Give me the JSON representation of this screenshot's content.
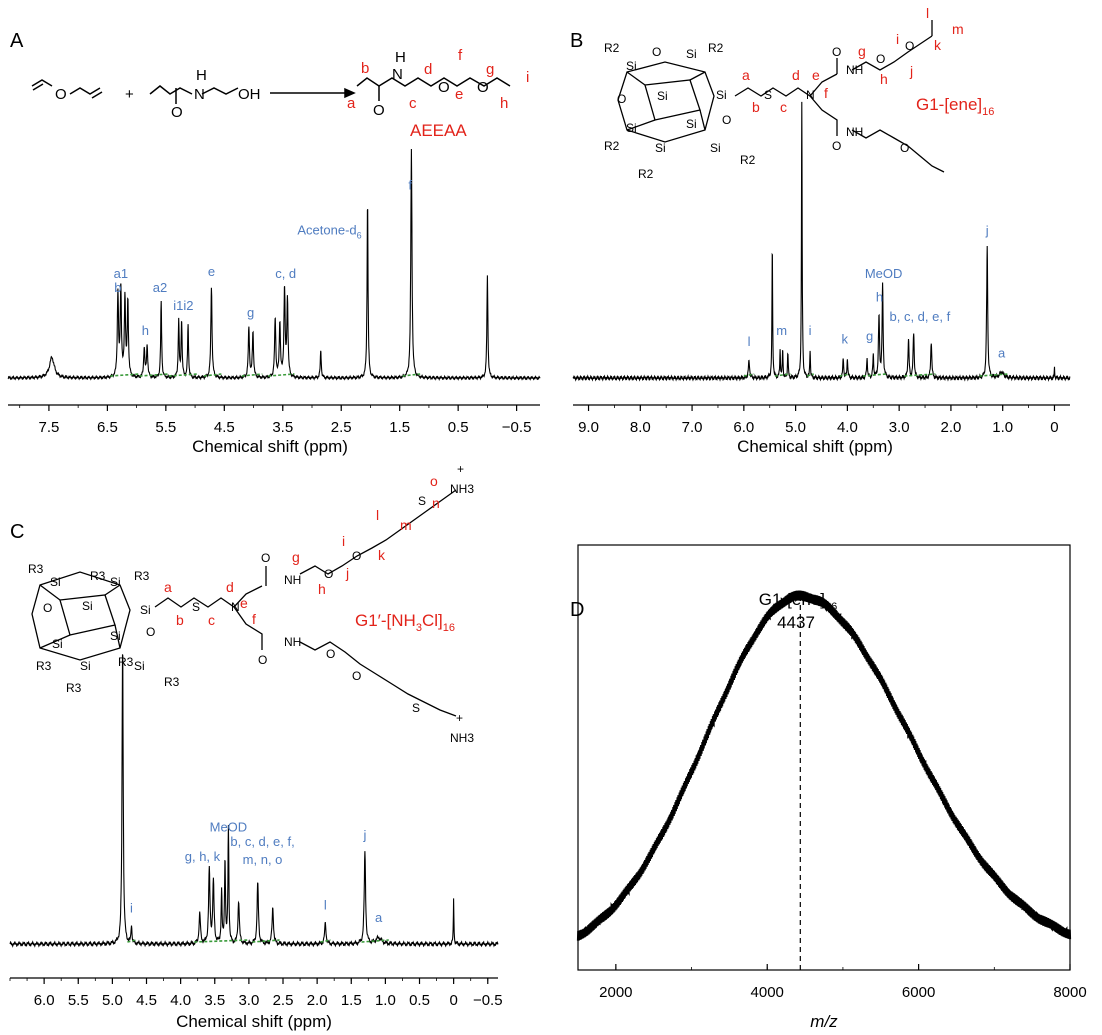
{
  "figure": {
    "panels": [
      "A",
      "B",
      "C",
      "D"
    ]
  },
  "colors": {
    "spectrum": "#000000",
    "peak_label": "#4f7cc0",
    "structure_label": "#e2231a",
    "integral": "#3a9a3a"
  },
  "chart_data": [
    {
      "panel": "A",
      "type": "line",
      "xlabel": "Chemical shift (ppm)",
      "x_ticks": [
        "7.5",
        "6.5",
        "5.5",
        "4.5",
        "3.5",
        "2.5",
        "1.5",
        "0.5",
        "−0.5"
      ],
      "xlim": [
        8.2,
        -0.9
      ],
      "x_reversed": true,
      "ylabel": "",
      "grid": false,
      "compound_label": "AEEAA",
      "scheme": {
        "reagent_joiner": "+",
        "reagent2_atoms": [
          "H",
          "N",
          "O",
          "OH"
        ],
        "product_atoms": [
          "H",
          "N",
          "O",
          "O",
          "O"
        ]
      },
      "structure_labels": [
        "a",
        "b",
        "c",
        "d",
        "e",
        "f",
        "g",
        "h",
        "i"
      ],
      "peaks": [
        {
          "x": 7.45,
          "h": 0.09,
          "w": 0.05
        },
        {
          "x": 6.32,
          "h": 0.37,
          "w": 0.012
        },
        {
          "x": 6.27,
          "h": 0.39,
          "w": 0.012
        },
        {
          "x": 6.2,
          "h": 0.35,
          "w": 0.012
        },
        {
          "x": 6.15,
          "h": 0.33,
          "w": 0.012
        },
        {
          "x": 5.87,
          "h": 0.13,
          "w": 0.012
        },
        {
          "x": 5.82,
          "h": 0.14,
          "w": 0.012
        },
        {
          "x": 5.58,
          "h": 0.33,
          "w": 0.01
        },
        {
          "x": 5.28,
          "h": 0.25,
          "w": 0.01
        },
        {
          "x": 5.23,
          "h": 0.25,
          "w": 0.01
        },
        {
          "x": 5.12,
          "h": 0.23,
          "w": 0.01
        },
        {
          "x": 4.72,
          "h": 0.4,
          "w": 0.012
        },
        {
          "x": 4.08,
          "h": 0.22,
          "w": 0.012
        },
        {
          "x": 4.01,
          "h": 0.2,
          "w": 0.012
        },
        {
          "x": 3.63,
          "h": 0.26,
          "w": 0.012
        },
        {
          "x": 3.55,
          "h": 0.24,
          "w": 0.012
        },
        {
          "x": 3.47,
          "h": 0.39,
          "w": 0.012
        },
        {
          "x": 3.42,
          "h": 0.34,
          "w": 0.012
        },
        {
          "x": 2.85,
          "h": 0.12,
          "w": 0.01
        },
        {
          "x": 2.05,
          "h": 0.77,
          "w": 0.01
        },
        {
          "x": 1.3,
          "h": 1.0,
          "w": 0.012
        },
        {
          "x": 0.0,
          "h": 0.45,
          "w": 0.01
        }
      ],
      "peak_labels": [
        {
          "text": "a1",
          "x": 6.27,
          "h": 0.42
        },
        {
          "text": "b",
          "x": 6.32,
          "h": 0.36
        },
        {
          "text": "h",
          "x": 5.85,
          "h": 0.17
        },
        {
          "text": "a2",
          "x": 5.6,
          "h": 0.36
        },
        {
          "text": "i1i2",
          "x": 5.2,
          "h": 0.28
        },
        {
          "text": "e",
          "x": 4.72,
          "h": 0.43
        },
        {
          "text": "g",
          "x": 4.05,
          "h": 0.25
        },
        {
          "text": "c, d",
          "x": 3.45,
          "h": 0.42
        },
        {
          "text": "f",
          "x": 1.32,
          "h": 0.81
        }
      ],
      "solvent_label": {
        "text": "Acetone-d",
        "sub": "6",
        "x": 2.7,
        "h": 0.63
      },
      "integrals": [
        [
          6.45,
          5.95
        ],
        [
          5.95,
          5.45
        ],
        [
          5.45,
          4.95
        ],
        [
          4.85,
          4.55
        ],
        [
          4.2,
          3.85
        ],
        [
          3.75,
          3.3
        ],
        [
          1.45,
          1.15
        ]
      ]
    },
    {
      "panel": "B",
      "type": "line",
      "xlabel": "Chemical shift (ppm)",
      "x_ticks": [
        "9.0",
        "8.0",
        "7.0",
        "6.0",
        "5.0",
        "4.0",
        "3.0",
        "2.0",
        "1.0",
        "0"
      ],
      "xlim": [
        9.3,
        -0.3
      ],
      "x_reversed": true,
      "ylabel": "",
      "grid": false,
      "compound_label": "G1-[ene]",
      "compound_sub": "16",
      "scheme": {
        "atoms": [
          "R2",
          "Si",
          "O",
          "S",
          "N",
          "O",
          "NH",
          "O",
          "O",
          "NH",
          "O",
          "O"
        ]
      },
      "structure_labels": [
        "a",
        "b",
        "c",
        "d",
        "e",
        "f",
        "g",
        "h",
        "i",
        "j",
        "k",
        "l",
        "m"
      ],
      "peaks": [
        {
          "x": 5.9,
          "h": 0.06,
          "w": 0.015
        },
        {
          "x": 5.45,
          "h": 0.47,
          "w": 0.008
        },
        {
          "x": 5.3,
          "h": 0.1,
          "w": 0.008
        },
        {
          "x": 5.25,
          "h": 0.1,
          "w": 0.008
        },
        {
          "x": 5.15,
          "h": 0.09,
          "w": 0.008
        },
        {
          "x": 4.88,
          "h": 0.99,
          "w": 0.008
        },
        {
          "x": 4.72,
          "h": 0.1,
          "w": 0.008
        },
        {
          "x": 4.08,
          "h": 0.07,
          "w": 0.01
        },
        {
          "x": 4.0,
          "h": 0.07,
          "w": 0.01
        },
        {
          "x": 3.62,
          "h": 0.07,
          "w": 0.01
        },
        {
          "x": 3.5,
          "h": 0.08,
          "w": 0.01
        },
        {
          "x": 3.39,
          "h": 0.22,
          "w": 0.012
        },
        {
          "x": 3.32,
          "h": 0.33,
          "w": 0.012
        },
        {
          "x": 2.82,
          "h": 0.14,
          "w": 0.012
        },
        {
          "x": 2.72,
          "h": 0.16,
          "w": 0.012
        },
        {
          "x": 2.38,
          "h": 0.13,
          "w": 0.012
        },
        {
          "x": 1.3,
          "h": 0.47,
          "w": 0.012
        },
        {
          "x": 1.02,
          "h": 0.02,
          "w": 0.05
        },
        {
          "x": 0.0,
          "h": 0.04,
          "w": 0.005
        }
      ],
      "peak_labels": [
        {
          "text": "l",
          "x": 5.9,
          "h": 0.1
        },
        {
          "text": "m",
          "x": 5.27,
          "h": 0.14
        },
        {
          "text": "i",
          "x": 4.72,
          "h": 0.14
        },
        {
          "text": "k",
          "x": 4.05,
          "h": 0.11
        },
        {
          "text": "g",
          "x": 3.57,
          "h": 0.12
        },
        {
          "text": "h",
          "x": 3.38,
          "h": 0.26
        },
        {
          "text": "b, c, d, e, f",
          "x": 2.6,
          "h": 0.19
        },
        {
          "text": "j",
          "x": 1.3,
          "h": 0.5
        },
        {
          "text": "a",
          "x": 1.02,
          "h": 0.06
        }
      ],
      "solvent_label": {
        "text": "MeOD",
        "x": 3.3,
        "h": 0.36
      },
      "integrals": [
        [
          6.0,
          5.8
        ],
        [
          5.4,
          5.1
        ],
        [
          4.78,
          4.65
        ],
        [
          4.15,
          3.95
        ],
        [
          3.7,
          3.25
        ],
        [
          2.9,
          2.3
        ],
        [
          1.45,
          0.9
        ]
      ]
    },
    {
      "panel": "C",
      "type": "line",
      "xlabel": "Chemical shift (ppm)",
      "x_ticks": [
        "6.0",
        "5.5",
        "5.0",
        "4.5",
        "4.0",
        "3.5",
        "3.0",
        "2.5",
        "2.0",
        "1.5",
        "1.0",
        "0.5",
        "0",
        "−0.5"
      ],
      "xlim": [
        6.5,
        -0.65
      ],
      "x_reversed": true,
      "ylabel": "",
      "grid": false,
      "compound_label": "G1′-[NH",
      "compound_label_sub": "3",
      "compound_label_tail": "Cl]",
      "compound_label_sub2": "16",
      "scheme": {
        "atoms": [
          "R3",
          "Si",
          "O",
          "S",
          "N",
          "O",
          "NH",
          "O",
          "O",
          "S",
          "+",
          "NH3",
          "O",
          "NH",
          "O",
          "O",
          "S",
          "+",
          "NH3"
        ]
      },
      "structure_labels": [
        "a",
        "b",
        "c",
        "d",
        "e",
        "f",
        "g",
        "h",
        "i",
        "j",
        "k",
        "l",
        "m",
        "n",
        "o"
      ],
      "peaks": [
        {
          "x": 4.85,
          "h": 0.99,
          "w": 0.01
        },
        {
          "x": 4.72,
          "h": 0.06,
          "w": 0.008
        },
        {
          "x": 3.72,
          "h": 0.1,
          "w": 0.012
        },
        {
          "x": 3.58,
          "h": 0.24,
          "w": 0.012
        },
        {
          "x": 3.52,
          "h": 0.2,
          "w": 0.012
        },
        {
          "x": 3.4,
          "h": 0.17,
          "w": 0.008
        },
        {
          "x": 3.35,
          "h": 0.28,
          "w": 0.008
        },
        {
          "x": 3.3,
          "h": 0.38,
          "w": 0.008
        },
        {
          "x": 3.15,
          "h": 0.14,
          "w": 0.012
        },
        {
          "x": 2.87,
          "h": 0.2,
          "w": 0.012
        },
        {
          "x": 2.65,
          "h": 0.12,
          "w": 0.012
        },
        {
          "x": 1.88,
          "h": 0.07,
          "w": 0.012
        },
        {
          "x": 1.3,
          "h": 0.3,
          "w": 0.012
        },
        {
          "x": 1.1,
          "h": 0.02,
          "w": 0.05
        },
        {
          "x": 0.0,
          "h": 0.15,
          "w": 0.005
        }
      ],
      "peak_labels": [
        {
          "text": "i",
          "x": 4.72,
          "h": 0.09
        },
        {
          "text": "g, h, k",
          "x": 3.68,
          "h": 0.26
        },
        {
          "text": "b, c, d, e, f,",
          "x": 2.8,
          "h": 0.31
        },
        {
          "text": "m, n, o",
          "x": 2.8,
          "h": 0.25
        },
        {
          "text": "l",
          "x": 1.88,
          "h": 0.1
        },
        {
          "text": "j",
          "x": 1.3,
          "h": 0.33
        },
        {
          "text": "a",
          "x": 1.1,
          "h": 0.06
        }
      ],
      "solvent_label": {
        "text": "MeOD",
        "x": 3.3,
        "h": 0.37
      },
      "integrals": [
        [
          4.78,
          4.65
        ],
        [
          3.8,
          3.0
        ],
        [
          2.95,
          2.55
        ],
        [
          1.95,
          1.8
        ],
        [
          1.35,
          0.95
        ]
      ]
    },
    {
      "panel": "D",
      "type": "line",
      "xlabel": "m/z",
      "x_ticks": [
        "2000",
        "4000",
        "6000",
        "8000"
      ],
      "xlim": [
        1500,
        8000
      ],
      "ylabel": "",
      "grid": false,
      "peak_label": "G1-[ene]",
      "peak_label_sub": "16",
      "peak_value": "4437",
      "peak_center": 4437,
      "distribution": {
        "mu": 4437,
        "sigma_left": 1250,
        "sigma_right": 1450,
        "baseline_left": 0.03,
        "baseline_right": 0.05
      }
    }
  ]
}
